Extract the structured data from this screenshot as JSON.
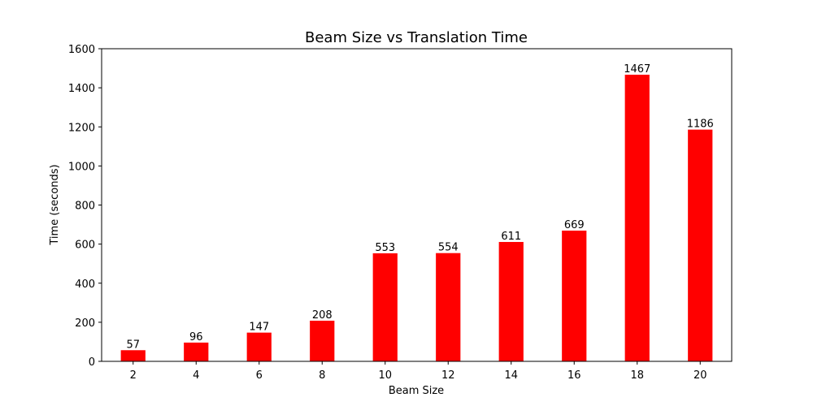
{
  "chart_data": {
    "type": "bar",
    "title": "Beam Size vs Translation Time",
    "xlabel": "Beam Size",
    "ylabel": "Time (seconds)",
    "categories": [
      "2",
      "4",
      "6",
      "8",
      "10",
      "12",
      "14",
      "16",
      "18",
      "20"
    ],
    "values": [
      57,
      96,
      147,
      208,
      553,
      554,
      611,
      669,
      1467,
      1186
    ],
    "data_labels": [
      "57",
      "96",
      "147",
      "208",
      "553",
      "554",
      "611",
      "669",
      "1467",
      "1186"
    ],
    "ylim": [
      0,
      1600
    ],
    "yticks": [
      0,
      200,
      400,
      600,
      800,
      1000,
      1200,
      1400,
      1600
    ],
    "ytick_labels": [
      "0",
      "200",
      "400",
      "600",
      "800",
      "1000",
      "1200",
      "1400",
      "1600"
    ],
    "bar_color": "#ff0000",
    "grid": false,
    "legend": "none"
  }
}
